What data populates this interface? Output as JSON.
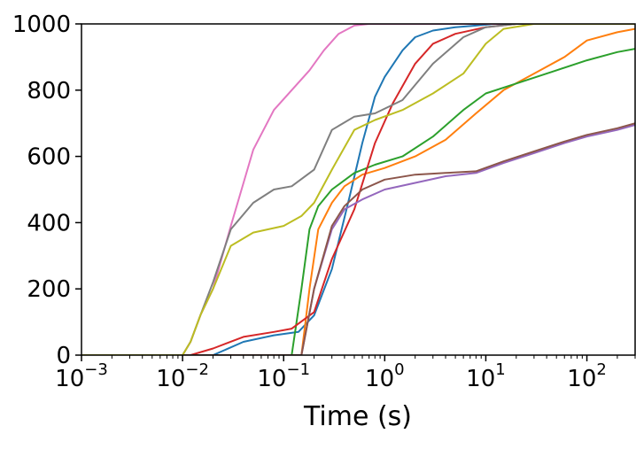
{
  "chart_data": {
    "type": "line",
    "title": "",
    "xlabel": "Time (s)",
    "ylabel": "",
    "xscale": "log",
    "xlim": [
      0.001,
      300
    ],
    "ylim": [
      0,
      1000
    ],
    "grid": false,
    "legend": "none",
    "x_tick_values": [
      0.001,
      0.01,
      0.1,
      1,
      10,
      100
    ],
    "x_tick_labels": [
      {
        "base": "10",
        "exp": "−3"
      },
      {
        "base": "10",
        "exp": "−2"
      },
      {
        "base": "10",
        "exp": "−1"
      },
      {
        "base": "10",
        "exp": "0"
      },
      {
        "base": "10",
        "exp": "1"
      },
      {
        "base": "10",
        "exp": "2"
      }
    ],
    "y_tick_values": [
      0,
      200,
      400,
      600,
      800,
      1000
    ],
    "y_tick_labels": [
      "0",
      "200",
      "400",
      "600",
      "800",
      "1000"
    ],
    "series": [
      {
        "color": "#1f77b4",
        "x": [
          0.001,
          0.02,
          0.04,
          0.08,
          0.14,
          0.2,
          0.3,
          0.45,
          0.6,
          0.8,
          1.0,
          1.5,
          2.0,
          3.0,
          5.0,
          8.0,
          12.0,
          300
        ],
        "y": [
          0,
          0,
          40,
          60,
          70,
          120,
          260,
          480,
          640,
          780,
          840,
          920,
          960,
          980,
          990,
          995,
          1000,
          1000
        ]
      },
      {
        "color": "#ff7f0e",
        "x": [
          0.001,
          0.15,
          0.18,
          0.22,
          0.3,
          0.4,
          0.6,
          1.0,
          2.0,
          4.0,
          8.0,
          15.0,
          30.0,
          60.0,
          100.0,
          200.0,
          300
        ],
        "y": [
          0,
          0,
          200,
          380,
          460,
          510,
          545,
          565,
          600,
          650,
          730,
          800,
          850,
          900,
          950,
          975,
          985
        ]
      },
      {
        "color": "#2ca02c",
        "x": [
          0.001,
          0.12,
          0.15,
          0.18,
          0.22,
          0.3,
          0.5,
          0.8,
          1.5,
          3.0,
          6.0,
          10.0,
          20.0,
          50.0,
          100.0,
          200.0,
          300
        ],
        "y": [
          0,
          0,
          200,
          380,
          450,
          500,
          550,
          575,
          600,
          660,
          740,
          790,
          820,
          860,
          890,
          915,
          925
        ]
      },
      {
        "color": "#d62728",
        "x": [
          0.001,
          0.012,
          0.02,
          0.04,
          0.08,
          0.12,
          0.2,
          0.3,
          0.5,
          0.8,
          1.2,
          2.0,
          3.0,
          5.0,
          10.0,
          20.0,
          300
        ],
        "y": [
          0,
          0,
          20,
          55,
          70,
          80,
          130,
          290,
          440,
          640,
          760,
          880,
          940,
          970,
          990,
          1000,
          1000
        ]
      },
      {
        "color": "#9467bd",
        "x": [
          0.001,
          0.15,
          0.2,
          0.3,
          0.4,
          0.6,
          1.0,
          2.0,
          4.0,
          8.0,
          15.0,
          30.0,
          60.0,
          100.0,
          200.0,
          300
        ],
        "y": [
          0,
          0,
          200,
          380,
          440,
          470,
          500,
          520,
          540,
          550,
          580,
          610,
          640,
          660,
          680,
          695
        ]
      },
      {
        "color": "#8c564b",
        "x": [
          0.001,
          0.15,
          0.2,
          0.3,
          0.4,
          0.6,
          1.0,
          2.0,
          4.0,
          8.0,
          15.0,
          30.0,
          60.0,
          100.0,
          200.0,
          300
        ],
        "y": [
          0,
          0,
          200,
          390,
          450,
          500,
          530,
          545,
          550,
          555,
          585,
          615,
          645,
          665,
          685,
          700
        ]
      },
      {
        "color": "#e377c2",
        "x": [
          0.001,
          0.01,
          0.012,
          0.015,
          0.02,
          0.03,
          0.05,
          0.08,
          0.12,
          0.18,
          0.25,
          0.35,
          0.5,
          0.7,
          1.0,
          300
        ],
        "y": [
          0,
          0,
          40,
          120,
          200,
          390,
          620,
          740,
          800,
          860,
          920,
          970,
          995,
          1000,
          1000,
          1000
        ]
      },
      {
        "color": "#7f7f7f",
        "x": [
          0.001,
          0.01,
          0.012,
          0.015,
          0.02,
          0.03,
          0.05,
          0.08,
          0.12,
          0.2,
          0.3,
          0.5,
          0.8,
          1.5,
          3.0,
          6.0,
          10.0,
          20.0,
          300
        ],
        "y": [
          0,
          0,
          40,
          120,
          220,
          380,
          460,
          500,
          510,
          560,
          680,
          720,
          730,
          770,
          880,
          960,
          990,
          1000,
          1000
        ]
      },
      {
        "color": "#bcbd22",
        "x": [
          0.001,
          0.01,
          0.012,
          0.015,
          0.02,
          0.03,
          0.05,
          0.1,
          0.15,
          0.2,
          0.3,
          0.5,
          0.8,
          1.5,
          3.0,
          6.0,
          10.0,
          15.0,
          30.0,
          300
        ],
        "y": [
          0,
          0,
          40,
          120,
          200,
          330,
          370,
          390,
          420,
          460,
          560,
          680,
          710,
          740,
          790,
          850,
          940,
          985,
          1000,
          1000
        ]
      }
    ]
  }
}
